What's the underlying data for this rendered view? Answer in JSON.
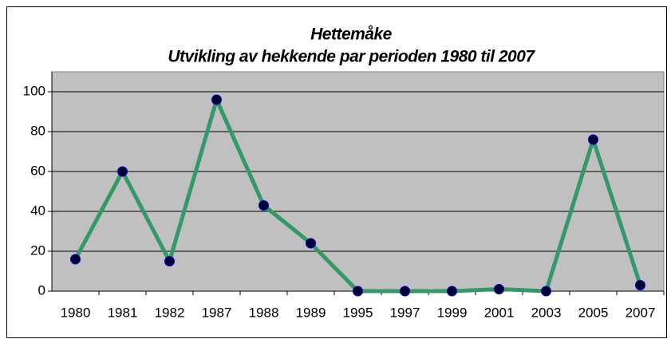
{
  "chart_data": {
    "type": "line",
    "title": "Hettemåke",
    "subtitle": "Utvikling av hekkende par perioden 1980 til 2007",
    "categories": [
      "1980",
      "1981",
      "1982",
      "1987",
      "1988",
      "1989",
      "1995",
      "1997",
      "1999",
      "2001",
      "2003",
      "2005",
      "2007"
    ],
    "series": [
      {
        "color": "#339966",
        "marker_color": "#000033",
        "values": [
          16,
          60,
          15,
          96,
          43,
          24,
          0,
          0,
          0,
          1,
          0,
          76,
          3
        ]
      }
    ],
    "ylim": [
      0,
      110
    ],
    "yticks": [
      0,
      20,
      40,
      60,
      80,
      100
    ],
    "grid": true
  }
}
